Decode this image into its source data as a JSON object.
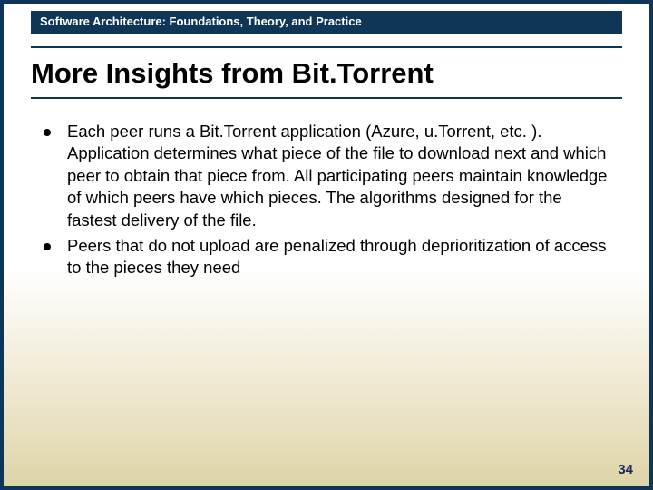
{
  "header": {
    "navbar_title": "Software Architecture: Foundations, Theory, and Practice"
  },
  "slide": {
    "title": "More Insights from Bit.Torrent",
    "bullets": [
      "Each peer runs a Bit.Torrent application (Azure, u.Torrent, etc. ). Application determines what piece of the file to download next and which peer to obtain that piece from. All participating peers maintain knowledge of which peers have which pieces. The algorithms designed for the fastest delivery of the file.",
      "Peers that do not upload are penalized through deprioritization of access to the pieces they need"
    ],
    "page_number": "34"
  },
  "style": {
    "border_color": "#0f3557",
    "header_bg": "#0f3557",
    "header_text_color": "#ffffff",
    "title_fontsize": 31,
    "body_fontsize": 18.5,
    "gradient_top": "#ffffff",
    "gradient_bottom": "#ded4a8",
    "pagenum_color": "#1a2a5a"
  }
}
